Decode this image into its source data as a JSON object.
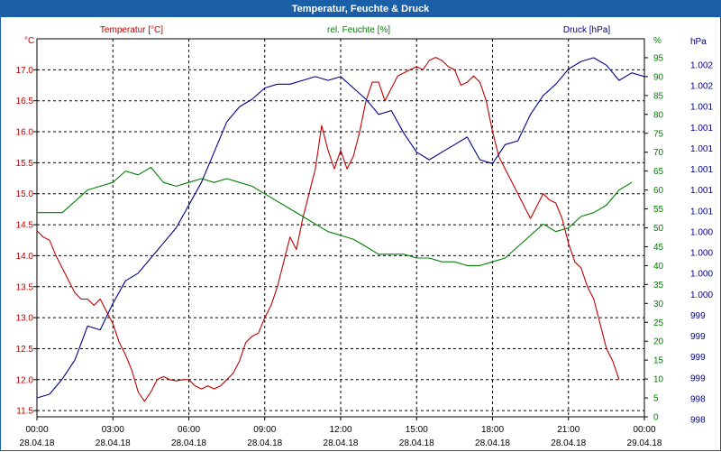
{
  "title": "Temperatur, Feuchte & Druck",
  "colors": {
    "temp": "#c00000",
    "humid": "#008000",
    "press": "#00008b",
    "grid": "#000000"
  },
  "chart_data": {
    "type": "line",
    "title": "Temperatur, Feuchte & Druck",
    "x_ticks": [
      {
        "time": "00:00",
        "date": "28.04.18"
      },
      {
        "time": "03:00",
        "date": "28.04.18"
      },
      {
        "time": "06:00",
        "date": "28.04.18"
      },
      {
        "time": "09:00",
        "date": "28.04.18"
      },
      {
        "time": "12:00",
        "date": "28.04.18"
      },
      {
        "time": "15:00",
        "date": "28.04.18"
      },
      {
        "time": "18:00",
        "date": "28.04.18"
      },
      {
        "time": "21:00",
        "date": "28.04.18"
      },
      {
        "time": "00:00",
        "date": "29.04.18"
      }
    ],
    "x_range_hours": [
      0,
      24
    ],
    "axes": {
      "temp": {
        "label": "Temperatur [°C]",
        "unit": "°C",
        "range": [
          11.4,
          17.5
        ],
        "ticks": [
          "17.0",
          "16.5",
          "16.0",
          "15.5",
          "15.0",
          "14.5",
          "14.0",
          "13.5",
          "13.0",
          "12.5",
          "12.0",
          "11.5"
        ]
      },
      "humid": {
        "label": "rel. Feuchte [%]",
        "unit": "%",
        "range": [
          0,
          100
        ],
        "ticks": [
          "95",
          "90",
          "85",
          "80",
          "75",
          "70",
          "65",
          "60",
          "55",
          "50",
          "45",
          "40",
          "35",
          "30",
          "25",
          "20",
          "15",
          "10",
          "5",
          "0"
        ]
      },
      "press": {
        "label": "Druck [hPa]",
        "unit": "hPa",
        "ticks": [
          "1.002",
          "1.002",
          "1.001",
          "1.001",
          "1.001",
          "1.001",
          "1.001",
          "1.001",
          "1.000",
          "1.000",
          "1.000",
          "1.000",
          "999",
          "999",
          "999",
          "999",
          "998",
          "998"
        ]
      }
    },
    "grid": true,
    "series": [
      {
        "name": "Temperatur [°C]",
        "axis": "temp",
        "points": [
          [
            0,
            14.4
          ],
          [
            0.25,
            14.3
          ],
          [
            0.5,
            14.25
          ],
          [
            0.75,
            14.0
          ],
          [
            1.0,
            13.8
          ],
          [
            1.25,
            13.6
          ],
          [
            1.5,
            13.4
          ],
          [
            1.75,
            13.3
          ],
          [
            2.0,
            13.3
          ],
          [
            2.25,
            13.2
          ],
          [
            2.5,
            13.3
          ],
          [
            2.75,
            13.1
          ],
          [
            3.0,
            12.9
          ],
          [
            3.25,
            12.6
          ],
          [
            3.5,
            12.4
          ],
          [
            3.75,
            12.15
          ],
          [
            4.0,
            11.8
          ],
          [
            4.25,
            11.65
          ],
          [
            4.5,
            11.8
          ],
          [
            4.75,
            12.0
          ],
          [
            5.0,
            12.05
          ],
          [
            5.25,
            12.0
          ],
          [
            5.5,
            11.98
          ],
          [
            5.75,
            12.0
          ],
          [
            6.0,
            12.0
          ],
          [
            6.25,
            11.9
          ],
          [
            6.5,
            11.85
          ],
          [
            6.75,
            11.9
          ],
          [
            7.0,
            11.85
          ],
          [
            7.25,
            11.9
          ],
          [
            7.5,
            12.0
          ],
          [
            7.75,
            12.1
          ],
          [
            8.0,
            12.3
          ],
          [
            8.25,
            12.6
          ],
          [
            8.5,
            12.7
          ],
          [
            8.75,
            12.75
          ],
          [
            9.0,
            13.0
          ],
          [
            9.25,
            13.2
          ],
          [
            9.5,
            13.5
          ],
          [
            9.75,
            13.9
          ],
          [
            10.0,
            14.3
          ],
          [
            10.25,
            14.1
          ],
          [
            10.5,
            14.6
          ],
          [
            10.75,
            15.0
          ],
          [
            11.0,
            15.4
          ],
          [
            11.25,
            16.1
          ],
          [
            11.5,
            15.7
          ],
          [
            11.75,
            15.4
          ],
          [
            12.0,
            15.7
          ],
          [
            12.25,
            15.4
          ],
          [
            12.5,
            15.6
          ],
          [
            12.75,
            16.0
          ],
          [
            13.0,
            16.5
          ],
          [
            13.25,
            16.8
          ],
          [
            13.5,
            16.8
          ],
          [
            13.75,
            16.5
          ],
          [
            14.0,
            16.7
          ],
          [
            14.25,
            16.9
          ],
          [
            14.5,
            16.95
          ],
          [
            14.75,
            17.0
          ],
          [
            15.0,
            17.05
          ],
          [
            15.25,
            17.0
          ],
          [
            15.5,
            17.15
          ],
          [
            15.75,
            17.2
          ],
          [
            16.0,
            17.15
          ],
          [
            16.25,
            17.05
          ],
          [
            16.5,
            17.0
          ],
          [
            16.75,
            16.75
          ],
          [
            17.0,
            16.8
          ],
          [
            17.25,
            16.9
          ],
          [
            17.5,
            16.8
          ],
          [
            17.75,
            16.5
          ],
          [
            18.0,
            16.0
          ],
          [
            18.25,
            15.6
          ],
          [
            18.5,
            15.4
          ],
          [
            18.75,
            15.2
          ],
          [
            19.0,
            15.0
          ],
          [
            19.25,
            14.8
          ],
          [
            19.5,
            14.6
          ],
          [
            19.75,
            14.8
          ],
          [
            20.0,
            15.0
          ],
          [
            20.25,
            14.9
          ],
          [
            20.5,
            14.85
          ],
          [
            20.75,
            14.6
          ],
          [
            21.0,
            14.2
          ],
          [
            21.25,
            13.9
          ],
          [
            21.5,
            13.8
          ],
          [
            21.75,
            13.5
          ],
          [
            22.0,
            13.3
          ],
          [
            22.25,
            12.9
          ],
          [
            22.5,
            12.5
          ],
          [
            22.75,
            12.3
          ],
          [
            23.0,
            12.0
          ]
        ]
      },
      {
        "name": "rel. Feuchte [%]",
        "axis": "humid",
        "points": [
          [
            0,
            54
          ],
          [
            0.5,
            54
          ],
          [
            1.0,
            54
          ],
          [
            1.5,
            57
          ],
          [
            2.0,
            60
          ],
          [
            2.5,
            61
          ],
          [
            3.0,
            62
          ],
          [
            3.5,
            65
          ],
          [
            4.0,
            64
          ],
          [
            4.5,
            66
          ],
          [
            5.0,
            62
          ],
          [
            5.5,
            61
          ],
          [
            6.0,
            62
          ],
          [
            6.5,
            63
          ],
          [
            7.0,
            62
          ],
          [
            7.5,
            63
          ],
          [
            8.0,
            62
          ],
          [
            8.5,
            61
          ],
          [
            9.0,
            59
          ],
          [
            9.5,
            57
          ],
          [
            10.0,
            55
          ],
          [
            10.5,
            53
          ],
          [
            11.0,
            51
          ],
          [
            11.5,
            49
          ],
          [
            12.0,
            48
          ],
          [
            12.5,
            47
          ],
          [
            13.0,
            45
          ],
          [
            13.5,
            43
          ],
          [
            14.0,
            43
          ],
          [
            14.5,
            43
          ],
          [
            15.0,
            42
          ],
          [
            15.5,
            42
          ],
          [
            16.0,
            41
          ],
          [
            16.5,
            41
          ],
          [
            17.0,
            40
          ],
          [
            17.5,
            40
          ],
          [
            18.0,
            41
          ],
          [
            18.5,
            42
          ],
          [
            19.0,
            45
          ],
          [
            19.5,
            48
          ],
          [
            20.0,
            51
          ],
          [
            20.5,
            49
          ],
          [
            21.0,
            50
          ],
          [
            21.5,
            53
          ],
          [
            22.0,
            54
          ],
          [
            22.5,
            56
          ],
          [
            23.0,
            60
          ],
          [
            23.5,
            62
          ]
        ]
      },
      {
        "name": "Druck [hPa]",
        "axis": "press",
        "points": [
          [
            0,
            5
          ],
          [
            0.5,
            6
          ],
          [
            1.0,
            10
          ],
          [
            1.5,
            15
          ],
          [
            2.0,
            24
          ],
          [
            2.5,
            23
          ],
          [
            3.0,
            30
          ],
          [
            3.5,
            36
          ],
          [
            4.0,
            38
          ],
          [
            4.5,
            42
          ],
          [
            5.0,
            46
          ],
          [
            5.5,
            50
          ],
          [
            6.0,
            56
          ],
          [
            6.5,
            62
          ],
          [
            7.0,
            70
          ],
          [
            7.5,
            78
          ],
          [
            8.0,
            82
          ],
          [
            8.5,
            84
          ],
          [
            9.0,
            87
          ],
          [
            9.5,
            88
          ],
          [
            10.0,
            88
          ],
          [
            10.5,
            89
          ],
          [
            11.0,
            90
          ],
          [
            11.5,
            89
          ],
          [
            12.0,
            90
          ],
          [
            12.5,
            87
          ],
          [
            13.0,
            84
          ],
          [
            13.5,
            80
          ],
          [
            14.0,
            81
          ],
          [
            14.5,
            75
          ],
          [
            15.0,
            70
          ],
          [
            15.5,
            68
          ],
          [
            16.0,
            70
          ],
          [
            16.5,
            72
          ],
          [
            17.0,
            74
          ],
          [
            17.5,
            68
          ],
          [
            18.0,
            67
          ],
          [
            18.5,
            72
          ],
          [
            19.0,
            73
          ],
          [
            19.5,
            80
          ],
          [
            20.0,
            85
          ],
          [
            20.5,
            88
          ],
          [
            21.0,
            92
          ],
          [
            21.5,
            94
          ],
          [
            22.0,
            95
          ],
          [
            22.5,
            93
          ],
          [
            23.0,
            89
          ],
          [
            23.5,
            91
          ],
          [
            24.0,
            90
          ]
        ]
      }
    ]
  }
}
